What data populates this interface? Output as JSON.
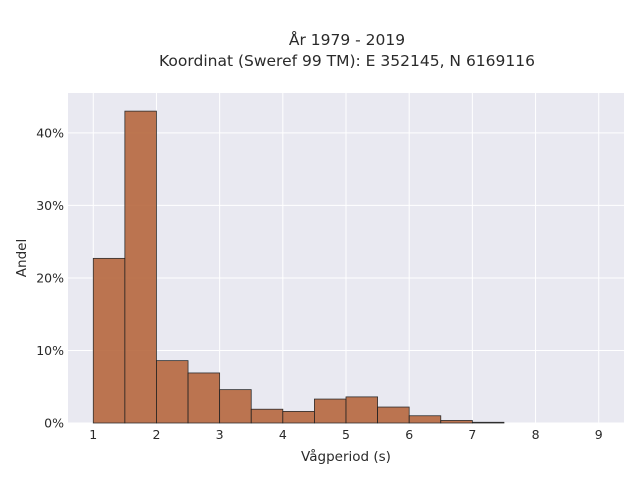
{
  "chart_data": {
    "type": "bar",
    "title": "År 1979 - 2019",
    "subtitle": "Koordinat (Sweref 99 TM): E 352145, N 6169116",
    "xlabel": "Vågperiod (s)",
    "ylabel": "Andel",
    "xlim": [
      0.6,
      9.4
    ],
    "ylim": [
      0,
      45.5
    ],
    "x_ticks": [
      1,
      2,
      3,
      4,
      5,
      6,
      7,
      8,
      9
    ],
    "y_ticks": [
      0,
      10,
      20,
      30,
      40
    ],
    "y_tick_labels": [
      "0%",
      "10%",
      "20%",
      "30%",
      "40%"
    ],
    "bin_width": 0.5,
    "bin_starts": [
      1.0,
      1.5,
      2.0,
      2.5,
      3.0,
      3.5,
      4.0,
      4.5,
      5.0,
      5.5,
      6.0,
      6.5,
      7.0
    ],
    "values": [
      22.7,
      43.0,
      8.6,
      6.9,
      4.6,
      1.9,
      1.6,
      3.3,
      3.6,
      2.2,
      1.0,
      0.35,
      0.1
    ],
    "bar_color": "#b86b43",
    "background_color": "#e9e9f1",
    "grid": true
  }
}
